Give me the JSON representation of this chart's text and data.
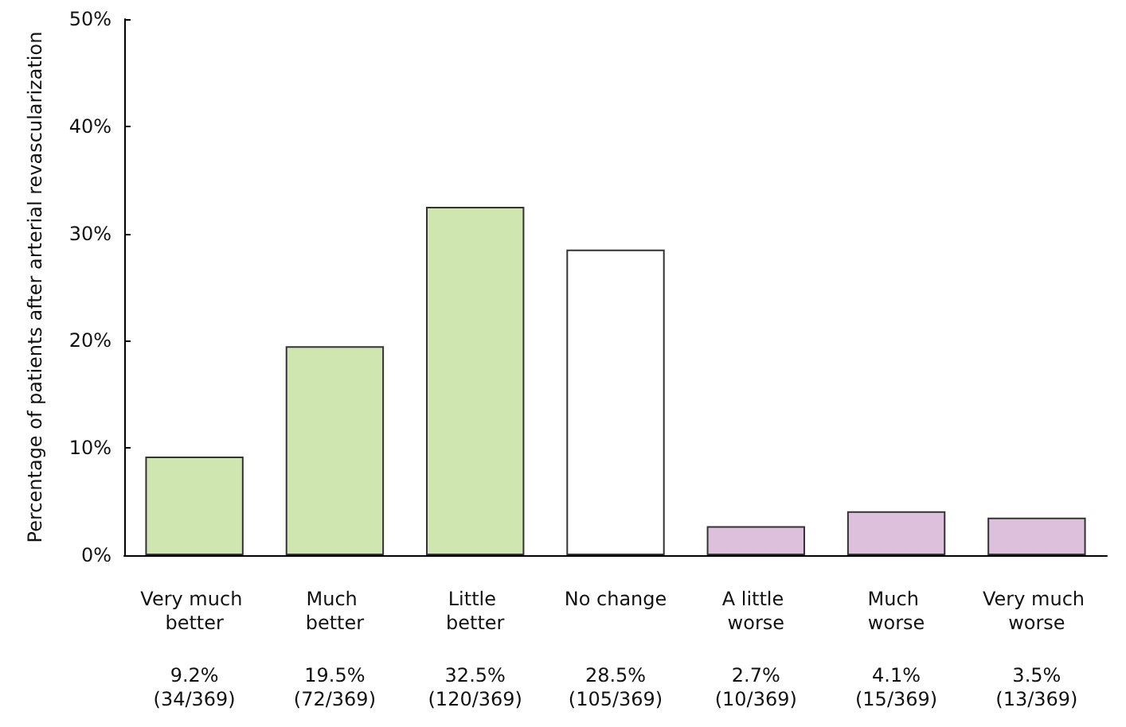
{
  "chart_data": {
    "type": "bar",
    "ylabel": "Percentage of patients after arterial revascularization",
    "categories": [
      "Very much better",
      "Much better",
      "Little better",
      "No change",
      "A little worse",
      "Much worse",
      "Very much worse"
    ],
    "values": [
      9.2,
      19.5,
      32.5,
      28.5,
      2.7,
      4.1,
      3.5
    ],
    "colors": [
      "#d0e6b0",
      "#d0e6b0",
      "#d0e6b0",
      "#ffffff",
      "#dcc0dc",
      "#dcc0dc",
      "#dcc0dc"
    ],
    "value_labels": [
      "9.2%\n(34/369)",
      "19.5%\n(72/369)",
      "32.5%\n(120/369)",
      "28.5%\n(105/369)",
      "2.7%\n(10/369)",
      "4.1%\n(15/369)",
      "3.5%\n(13/369)"
    ],
    "ylim": [
      0,
      50
    ],
    "yticks": [
      {
        "value": 0,
        "label": "0%"
      },
      {
        "value": 10,
        "label": "10%"
      },
      {
        "value": 20,
        "label": "20%"
      },
      {
        "value": 30,
        "label": "30%"
      },
      {
        "value": 40,
        "label": "40%"
      },
      {
        "value": 50,
        "label": "50%"
      }
    ],
    "grid": false
  }
}
